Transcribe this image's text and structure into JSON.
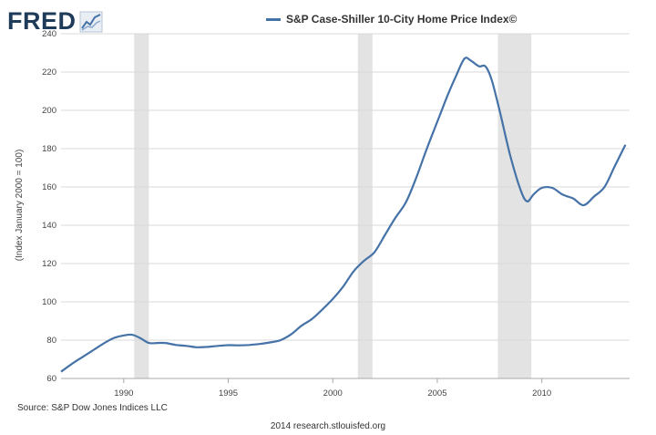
{
  "logo": {
    "text": "FRED",
    "icon": "chart-trend-icon"
  },
  "colors": {
    "series": "#4572a7",
    "recession": "#e3e3e3",
    "logo": "#1f3b5a"
  },
  "chart_data": {
    "type": "line",
    "title": "",
    "legend": "top-center",
    "xlabel": "",
    "ylabel": "(Index January 2000 = 100)",
    "ylim": [
      60,
      240
    ],
    "yticks": [
      60,
      80,
      100,
      120,
      140,
      160,
      180,
      200,
      220,
      240
    ],
    "xlim": [
      1987.0,
      2014.2
    ],
    "xticks": [
      1990,
      1995,
      2000,
      2005,
      2010
    ],
    "xtick_labels": [
      "1990",
      "1995",
      "2000",
      "2005",
      "2010"
    ],
    "recessions": [
      [
        1990.5,
        1991.2
      ],
      [
        2001.2,
        2001.9
      ],
      [
        2007.9,
        2009.5
      ]
    ],
    "series": [
      {
        "name": "S&P Case-Shiller 10-City Home Price Index©",
        "x": [
          1987.0,
          1987.5,
          1988.0,
          1988.5,
          1989.0,
          1989.5,
          1990.0,
          1990.4,
          1990.8,
          1991.2,
          1991.6,
          1992.0,
          1992.5,
          1993.0,
          1993.5,
          1994.0,
          1994.5,
          1995.0,
          1995.5,
          1996.0,
          1996.5,
          1997.0,
          1997.5,
          1998.0,
          1998.5,
          1999.0,
          1999.5,
          2000.0,
          2000.5,
          2001.0,
          2001.5,
          2002.0,
          2002.5,
          2003.0,
          2003.5,
          2004.0,
          2004.5,
          2005.0,
          2005.5,
          2005.9,
          2006.3,
          2006.6,
          2007.0,
          2007.3,
          2007.6,
          2008.0,
          2008.5,
          2009.0,
          2009.3,
          2009.6,
          2010.0,
          2010.5,
          2011.0,
          2011.5,
          2012.0,
          2012.5,
          2013.0,
          2013.5,
          2014.0
        ],
        "values": [
          63.5,
          67.5,
          71,
          74.5,
          78,
          81,
          82.5,
          82.8,
          81,
          78.5,
          78.5,
          78.5,
          77.5,
          77,
          76.3,
          76.5,
          77,
          77.4,
          77.3,
          77.5,
          78,
          78.8,
          80,
          83,
          87.5,
          91,
          96,
          101.5,
          108,
          116,
          121.5,
          126,
          135,
          144,
          152,
          165,
          180,
          194,
          208,
          218,
          227,
          226,
          223,
          223,
          216,
          199,
          176,
          158,
          152.5,
          156,
          159.5,
          159.5,
          156,
          154,
          150.5,
          155,
          160,
          171,
          182
        ]
      }
    ]
  },
  "source": "Source: S&P Dow Jones Indices LLC",
  "credit": "2014 research.stlouisfed.org"
}
